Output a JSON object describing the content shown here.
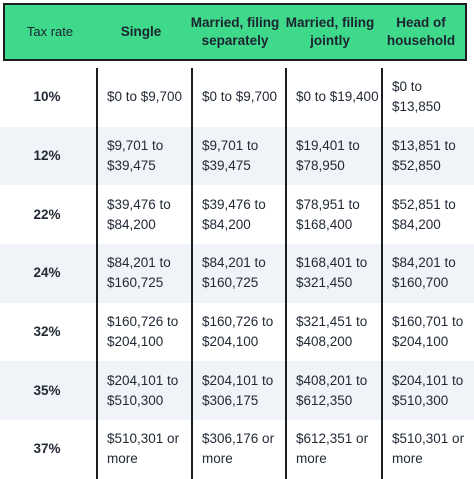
{
  "header": {
    "tax_rate": "Tax rate",
    "single": "Single",
    "married_separately": "Married, filing\nseparately",
    "married_jointly": "Married, filing\njointly",
    "head_of_household": "Head of\nhousehold"
  },
  "rows": [
    {
      "rate": "10%",
      "single": "$0 to $9,700",
      "separately": "$0 to $9,700",
      "jointly": "$0 to $19,400",
      "household": "$0 to $13,850"
    },
    {
      "rate": "12%",
      "single": "$9,701 to\n$39,475",
      "separately": "$9,701 to\n$39,475",
      "jointly": "$19,401 to\n$78,950",
      "household": "$13,851 to\n$52,850"
    },
    {
      "rate": "22%",
      "single": "$39,476 to\n$84,200",
      "separately": "$39,476 to\n$84,200",
      "jointly": "$78,951 to\n$168,400",
      "household": "$52,851 to\n$84,200"
    },
    {
      "rate": "24%",
      "single": "$84,201 to\n$160,725",
      "separately": "$84,201 to\n$160,725",
      "jointly": "$168,401 to\n$321,450",
      "household": "$84,201 to\n$160,700"
    },
    {
      "rate": "32%",
      "single": "$160,726 to\n$204,100",
      "separately": "$160,726 to\n$204,100",
      "jointly": "$321,451 to\n$408,200",
      "household": "$160,701 to\n$204,100"
    },
    {
      "rate": "35%",
      "single": "$204,101 to\n$510,300",
      "separately": "$204,101 to\n$306,175",
      "jointly": "$408,201 to\n$612,350",
      "household": "$204,101 to\n$510,300"
    },
    {
      "rate": "37%",
      "single": "$510,301 or\nmore",
      "separately": "$306,176 or\nmore",
      "jointly": "$612,351 or\nmore",
      "household": "$510,301 or\nmore"
    }
  ],
  "colors": {
    "header_bg": "#3ed98a",
    "alt_row_bg": "#f0f4f8",
    "border": "#1b1f24"
  }
}
